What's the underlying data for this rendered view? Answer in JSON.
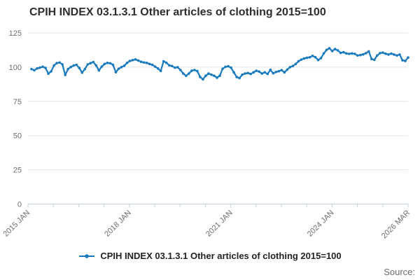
{
  "title": "CPIH INDEX 03.1.3.1 Other articles of clothing 2015=100",
  "source_label": "Source:",
  "legend": {
    "label": "CPIH INDEX 03.1.3.1 Other articles of clothing 2015=100"
  },
  "colors": {
    "line": "#1a7abe",
    "grid": "#e6e6e6",
    "axis": "#c6d1de",
    "axis_label": "#6e6e6e",
    "title_text": "#2e2e2e",
    "legend_text": "#222222",
    "source_text": "#6b6b6b",
    "background": "#ffffff"
  },
  "chart_data": {
    "type": "line",
    "title": "CPIH INDEX 03.1.3.1 Other articles of clothing 2015=100",
    "xlabel": "",
    "ylabel": "",
    "x_start": "2015 JAN",
    "x_end": "2026 MAR",
    "frequency": "monthly",
    "x_tick_labels": [
      "2015 JAN",
      "2018 JAN",
      "2021 JAN",
      "2024 JAN",
      "2026 MAR"
    ],
    "x_tick_label_positions": [
      0,
      4,
      8,
      12,
      15
    ],
    "x_tick_count": 16,
    "y_ticks": [
      0,
      25,
      50,
      75,
      100,
      125
    ],
    "ylim": [
      0,
      125
    ],
    "grid": "horizontal-only",
    "legend_position": "bottom",
    "marker": "circle",
    "series": [
      {
        "name": "CPIH INDEX 03.1.3.1 Other articles of clothing 2015=100",
        "values": [
          98.6,
          97.7,
          99,
          99.6,
          100.3,
          99.4,
          95.2,
          96.9,
          101.2,
          102.9,
          103.4,
          102,
          94.3,
          98.6,
          100.1,
          101.2,
          101.7,
          99.4,
          96,
          98.6,
          102,
          102.9,
          103.7,
          101.2,
          97.6,
          100.4,
          102.3,
          103.1,
          102.8,
          101.7,
          96.3,
          98.8,
          100,
          101,
          103.1,
          104.5,
          105.1,
          105.6,
          104.8,
          103.9,
          103.4,
          103.1,
          102.3,
          101.7,
          100.4,
          99,
          97.2,
          104.3,
          103.2,
          101.3,
          100.8,
          99.6,
          99.9,
          97.9,
          95.3,
          93.7,
          95.3,
          97.4,
          97.9,
          97.1,
          92.8,
          91.1,
          93.7,
          95.3,
          94.5,
          93.7,
          92.3,
          93.7,
          98.8,
          100.2,
          100.6,
          99.6,
          96.2,
          92.8,
          92,
          94.5,
          95.3,
          95.7,
          95,
          96.2,
          97.4,
          96.7,
          95.3,
          96.2,
          95,
          98,
          95.5,
          96.5,
          97,
          97.8,
          96.2,
          98.2,
          100,
          100.8,
          102.3,
          104.3,
          105.5,
          106.3,
          106.8,
          107.2,
          108.2,
          107.3,
          105.2,
          106.6,
          110,
          112.6,
          113.8,
          111.7,
          113.2,
          112.2,
          110.4,
          110.9,
          110,
          109.7,
          110,
          109.7,
          108.5,
          108.8,
          109.3,
          110.2,
          111.5,
          106,
          105.3,
          108.5,
          110.2,
          110.6,
          109.8,
          109.2,
          109.9,
          109.2,
          108.5,
          109.2,
          105,
          104.5,
          107
        ]
      }
    ]
  }
}
